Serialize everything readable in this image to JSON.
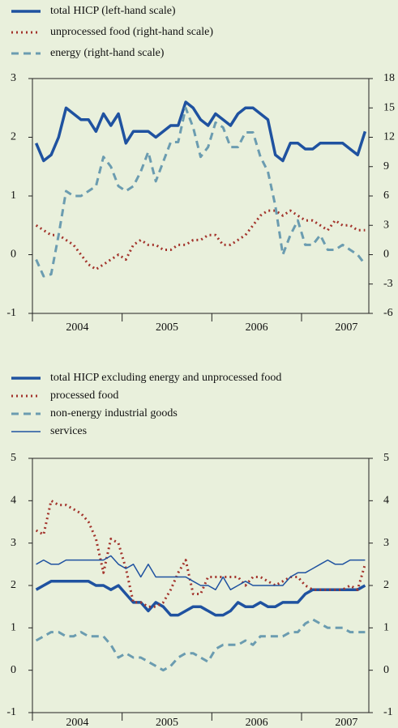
{
  "chart_data": [
    {
      "type": "line",
      "categories": [
        null,
        null,
        null,
        null,
        null,
        null,
        "2004",
        null,
        null,
        null,
        null,
        null,
        null,
        null,
        null,
        null,
        null,
        null,
        "2005",
        null,
        null,
        null,
        null,
        null,
        null,
        null,
        null,
        null,
        null,
        null,
        "2006",
        null,
        null,
        null,
        null,
        null,
        null,
        null,
        null,
        null,
        null,
        null,
        "2007",
        null,
        null
      ],
      "ylim": [
        -1,
        3
      ],
      "yticks": [
        -1,
        0,
        1,
        2,
        3
      ],
      "y2lim": [
        -6,
        18
      ],
      "y2ticks": [
        -6,
        -3,
        0,
        3,
        6,
        9,
        12,
        15,
        18
      ],
      "grid": false,
      "series": [
        {
          "name": "total HICP (left-hand scale)",
          "color": "#1f52a0",
          "style": "solid",
          "width": 3.5,
          "values": [
            1.9,
            1.6,
            1.7,
            2.0,
            2.5,
            2.4,
            2.3,
            2.3,
            2.1,
            2.4,
            2.2,
            2.4,
            1.9,
            2.1,
            2.1,
            2.1,
            2.0,
            2.1,
            2.2,
            2.2,
            2.6,
            2.5,
            2.3,
            2.2,
            2.4,
            2.3,
            2.2,
            2.4,
            2.5,
            2.5,
            2.4,
            2.3,
            1.7,
            1.6,
            1.9,
            1.9,
            1.8,
            1.8,
            1.9,
            1.9,
            1.9,
            1.9,
            1.8,
            1.7,
            2.1
          ]
        },
        {
          "name": "unprocessed food (right-hand scale)",
          "color": "#a3342c",
          "style": "dotted",
          "width": 3,
          "axis": "y2",
          "values": [
            3,
            2.5,
            2,
            2,
            1.5,
            1,
            0,
            -1,
            -1.5,
            -1,
            -0.5,
            0,
            -0.5,
            1,
            1.5,
            1,
            1,
            0.5,
            0.5,
            1,
            1,
            1.5,
            1.5,
            2,
            2,
            1,
            1,
            1.5,
            2,
            3,
            4,
            4.5,
            4.5,
            4,
            4.5,
            4,
            3.5,
            3.5,
            3,
            2.5,
            3.5,
            3,
            3,
            2.5,
            2.5
          ]
        },
        {
          "name": "energy (right-hand scale)",
          "color": "#6b9cb0",
          "style": "dashed",
          "width": 3,
          "axis": "y2",
          "values": [
            -0.5,
            -2.2,
            -2,
            2,
            6.5,
            6,
            6,
            6.5,
            7,
            10,
            9,
            7,
            6.5,
            7,
            8.5,
            10.5,
            7.5,
            9.5,
            11.5,
            11.5,
            15,
            13,
            10,
            11,
            13.5,
            13,
            11,
            11,
            12.5,
            12.5,
            10,
            8.5,
            5,
            0,
            2,
            3.5,
            1,
            1,
            2,
            0.5,
            0.5,
            1,
            0.5,
            0,
            -1
          ]
        }
      ]
    },
    {
      "type": "line",
      "categories": [
        null,
        null,
        null,
        null,
        null,
        null,
        "2004",
        null,
        null,
        null,
        null,
        null,
        null,
        null,
        null,
        null,
        null,
        null,
        "2005",
        null,
        null,
        null,
        null,
        null,
        null,
        null,
        null,
        null,
        null,
        null,
        "2006",
        null,
        null,
        null,
        null,
        null,
        null,
        null,
        null,
        null,
        null,
        null,
        "2007",
        null,
        null
      ],
      "ylim": [
        -1,
        5
      ],
      "yticks": [
        -1,
        0,
        1,
        2,
        3,
        4,
        5
      ],
      "y2lim": [
        -1,
        5
      ],
      "y2ticks": [
        -1,
        0,
        1,
        2,
        3,
        4,
        5
      ],
      "grid": false,
      "series": [
        {
          "name": "total HICP excluding energy and unprocessed food",
          "color": "#1f52a0",
          "style": "solid",
          "width": 3.5,
          "values": [
            1.9,
            2.0,
            2.1,
            2.1,
            2.1,
            2.1,
            2.1,
            2.1,
            2.0,
            2.0,
            1.9,
            2.0,
            1.8,
            1.6,
            1.6,
            1.4,
            1.6,
            1.5,
            1.3,
            1.3,
            1.4,
            1.5,
            1.5,
            1.4,
            1.3,
            1.3,
            1.4,
            1.6,
            1.5,
            1.5,
            1.6,
            1.5,
            1.5,
            1.6,
            1.6,
            1.6,
            1.8,
            1.9,
            1.9,
            1.9,
            1.9,
            1.9,
            1.9,
            1.9,
            2.0
          ]
        },
        {
          "name": "processed food",
          "color": "#a3342c",
          "style": "dotted",
          "width": 3,
          "values": [
            3.3,
            3.2,
            4.0,
            3.9,
            3.9,
            3.8,
            3.7,
            3.5,
            3.1,
            2.3,
            3.1,
            3.0,
            2.4,
            1.6,
            1.6,
            1.5,
            1.5,
            1.6,
            1.9,
            2.3,
            2.6,
            1.8,
            1.8,
            2.2,
            2.2,
            2.2,
            2.2,
            2.2,
            2.0,
            2.2,
            2.2,
            2.1,
            2.0,
            2.1,
            2.2,
            2.2,
            2.0,
            1.9,
            1.9,
            1.9,
            1.9,
            1.9,
            2.0,
            1.9,
            2.5
          ]
        },
        {
          "name": "non-energy industrial goods",
          "color": "#6b9cb0",
          "style": "dashed",
          "width": 3,
          "values": [
            0.7,
            0.8,
            0.9,
            0.9,
            0.8,
            0.8,
            0.9,
            0.8,
            0.8,
            0.8,
            0.6,
            0.3,
            0.4,
            0.3,
            0.3,
            0.2,
            0.1,
            0.0,
            0.1,
            0.3,
            0.4,
            0.4,
            0.3,
            0.2,
            0.5,
            0.6,
            0.6,
            0.6,
            0.7,
            0.6,
            0.8,
            0.8,
            0.8,
            0.8,
            0.9,
            0.9,
            1.1,
            1.2,
            1.1,
            1.0,
            1.0,
            1.0,
            0.9,
            0.9,
            0.9
          ]
        },
        {
          "name": "services",
          "color": "#1f52a0",
          "style": "solid",
          "width": 1.5,
          "values": [
            2.5,
            2.6,
            2.5,
            2.5,
            2.6,
            2.6,
            2.6,
            2.6,
            2.6,
            2.6,
            2.7,
            2.5,
            2.4,
            2.5,
            2.2,
            2.5,
            2.2,
            2.2,
            2.2,
            2.2,
            2.2,
            2.1,
            2.0,
            2.0,
            1.9,
            2.2,
            1.9,
            2.0,
            2.1,
            2.0,
            2.0,
            2.0,
            2.0,
            2.0,
            2.2,
            2.3,
            2.3,
            2.4,
            2.5,
            2.6,
            2.5,
            2.5,
            2.6,
            2.6,
            2.6
          ]
        }
      ]
    }
  ]
}
